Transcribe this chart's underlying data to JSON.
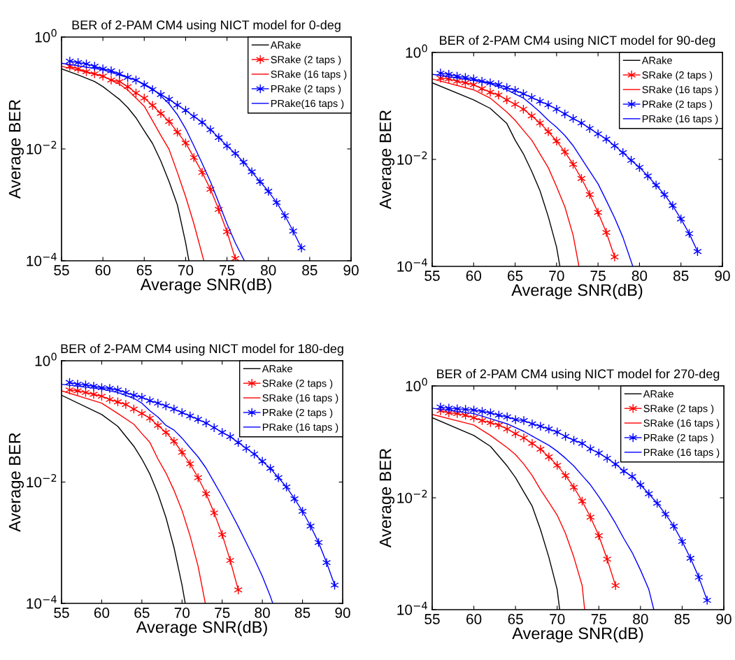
{
  "chart_data": [
    {
      "type": "line",
      "title": "BER of 2-PAM CM4 using NICT model for 0-deg",
      "xlabel": "Average SNR(dB)",
      "ylabel": "Average BER",
      "log": "y",
      "legend": "top right",
      "xlim": [
        55,
        90
      ],
      "xticks": [
        55,
        60,
        65,
        70,
        75,
        80,
        85,
        90
      ],
      "ylim": [
        0.0001,
        1
      ],
      "yticks": [
        {
          "value": 1,
          "label": "10$^{0}$"
        },
        {
          "value": 0.01,
          "label": "10$^{−2}$"
        },
        {
          "value": 0.0001,
          "label": "10$^{−4}$"
        }
      ],
      "series": [
        {
          "name": "ARake",
          "color": "#000000",
          "marker": "none",
          "x": [
            55,
            57,
            59,
            60,
            61,
            62,
            63,
            64,
            65,
            66,
            67,
            68,
            69,
            70,
            70.4
          ],
          "values": [
            0.27,
            0.21,
            0.16,
            0.13,
            0.1,
            0.077,
            0.055,
            0.036,
            0.021,
            0.0125,
            0.0061,
            0.0026,
            0.001,
            0.00021,
            0.0001
          ]
        },
        {
          "name": "SRake (2 taps )",
          "color": "#ff0000",
          "marker": "cross",
          "x": [
            56,
            57,
            58,
            59,
            60,
            61,
            62,
            63,
            64,
            65,
            66,
            67,
            68,
            69,
            70,
            71,
            72,
            73,
            74,
            75,
            76
          ],
          "values": [
            0.3,
            0.27,
            0.24,
            0.22,
            0.2,
            0.17,
            0.16,
            0.13,
            0.1,
            0.081,
            0.06,
            0.043,
            0.031,
            0.02,
            0.0128,
            0.007,
            0.0038,
            0.0019,
            0.00083,
            0.00033,
            0.00011
          ]
        },
        {
          "name": "SRake (16 taps )",
          "color": "#ff0000",
          "marker": "none",
          "x": [
            55,
            60,
            62,
            63,
            64,
            65,
            66,
            67,
            68,
            69,
            70,
            71,
            72.2
          ],
          "values": [
            0.3,
            0.2,
            0.144,
            0.113,
            0.081,
            0.058,
            0.032,
            0.0175,
            0.0098,
            0.0038,
            0.0014,
            0.00046,
            0.0001
          ]
        },
        {
          "name": "PRake (2 taps )",
          "color": "#0000ff",
          "marker": "cross",
          "x": [
            56,
            57,
            58,
            59,
            60,
            61,
            62,
            63,
            64,
            65,
            66,
            67,
            68,
            69,
            70,
            71,
            72,
            73,
            74,
            75,
            76,
            77,
            78,
            79,
            80,
            81,
            82,
            83,
            84
          ],
          "values": [
            0.37,
            0.35,
            0.33,
            0.3,
            0.27,
            0.25,
            0.22,
            0.19,
            0.17,
            0.14,
            0.115,
            0.094,
            0.077,
            0.061,
            0.049,
            0.038,
            0.03,
            0.022,
            0.016,
            0.0113,
            0.0083,
            0.0058,
            0.0039,
            0.0026,
            0.00175,
            0.0011,
            0.00064,
            0.00034,
            0.00017
          ]
        },
        {
          "name": "PRake(16 taps )",
          "color": "#0000ff",
          "marker": "none",
          "x": [
            55,
            60,
            62,
            64,
            65,
            66,
            67,
            68,
            69,
            70,
            71,
            72,
            73,
            74,
            75,
            76,
            77.1
          ],
          "values": [
            0.34,
            0.26,
            0.21,
            0.17,
            0.144,
            0.119,
            0.089,
            0.064,
            0.041,
            0.023,
            0.0114,
            0.0055,
            0.0026,
            0.0011,
            0.00046,
            0.00021,
            0.0001
          ]
        }
      ]
    },
    {
      "type": "line",
      "title": "BER of 2-PAM CM4 using NICT model for 90-deg",
      "xlabel": "Average SNR(dB)",
      "ylabel": "Average BER",
      "log": "y",
      "legend": "top right",
      "xlim": [
        55,
        90
      ],
      "xticks": [
        55,
        60,
        65,
        70,
        75,
        80,
        85,
        90
      ],
      "ylim": [
        0.0001,
        1
      ],
      "yticks": [
        {
          "value": 1,
          "label": "10$^{0}$"
        },
        {
          "value": 0.01,
          "label": "10$^{−2}$"
        },
        {
          "value": 0.0001,
          "label": "10$^{−4}$"
        }
      ],
      "series": [
        {
          "name": "ARake",
          "color": "#000000",
          "marker": "none",
          "x": [
            55,
            60,
            62,
            64,
            65,
            66,
            67,
            68,
            69,
            70,
            70.4
          ],
          "values": [
            0.27,
            0.13,
            0.09,
            0.047,
            0.023,
            0.0127,
            0.006,
            0.0026,
            0.00085,
            0.00023,
            0.0001
          ]
        },
        {
          "name": "SRake (2 taps )",
          "color": "#ff0000",
          "marker": "cross",
          "x": [
            56,
            57,
            58,
            59,
            60,
            61,
            62,
            63,
            64,
            65,
            66,
            67,
            68,
            69,
            70,
            71,
            72,
            73,
            74,
            75,
            76,
            77
          ],
          "values": [
            0.33,
            0.32,
            0.29,
            0.27,
            0.25,
            0.21,
            0.18,
            0.16,
            0.13,
            0.107,
            0.087,
            0.065,
            0.048,
            0.033,
            0.022,
            0.0138,
            0.0081,
            0.0044,
            0.0022,
            0.00102,
            0.00043,
            0.00015
          ]
        },
        {
          "name": "SRake (16 taps )",
          "color": "#ff0000",
          "marker": "none",
          "x": [
            55,
            60,
            62,
            64,
            65,
            66,
            67,
            68,
            69,
            70,
            71,
            72,
            72.7
          ],
          "values": [
            0.32,
            0.2,
            0.14,
            0.077,
            0.054,
            0.035,
            0.023,
            0.0127,
            0.007,
            0.0031,
            0.0013,
            0.00038,
            0.0001
          ]
        },
        {
          "name": "PRake (2 taps )",
          "color": "#0000ff",
          "marker": "cross",
          "x": [
            56,
            57,
            58,
            59,
            60,
            61,
            62,
            63,
            64,
            65,
            66,
            67,
            68,
            69,
            70,
            71,
            72,
            73,
            74,
            75,
            76,
            77,
            78,
            79,
            80,
            81,
            82,
            83,
            84,
            85,
            86,
            87
          ],
          "values": [
            0.41,
            0.39,
            0.36,
            0.34,
            0.32,
            0.29,
            0.27,
            0.25,
            0.22,
            0.195,
            0.169,
            0.144,
            0.122,
            0.105,
            0.087,
            0.071,
            0.058,
            0.048,
            0.038,
            0.03,
            0.024,
            0.018,
            0.0134,
            0.0096,
            0.0071,
            0.0049,
            0.0033,
            0.0022,
            0.00137,
            0.00077,
            0.00041,
            0.00019
          ]
        },
        {
          "name": "PRake (16 taps )",
          "color": "#0000ff",
          "marker": "none",
          "x": [
            55,
            60,
            62,
            64,
            66,
            67,
            68,
            69,
            70,
            71,
            72,
            73,
            74,
            75,
            76,
            77,
            78,
            79.2
          ],
          "values": [
            0.39,
            0.3,
            0.26,
            0.2,
            0.14,
            0.105,
            0.077,
            0.054,
            0.04,
            0.028,
            0.018,
            0.0104,
            0.006,
            0.0035,
            0.0017,
            0.00081,
            0.00035,
            0.0001
          ]
        }
      ]
    },
    {
      "type": "line",
      "title": "BER of 2-PAM CM4 using NICT model for 180-deg",
      "xlabel": "Average SNR(dB)",
      "ylabel": "Average BER",
      "log": "y",
      "legend": "top right",
      "xlim": [
        55,
        90
      ],
      "xticks": [
        55,
        60,
        65,
        70,
        75,
        80,
        85,
        90
      ],
      "ylim": [
        0.0001,
        1
      ],
      "yticks": [
        {
          "value": 1,
          "label": "10$^{0}$"
        },
        {
          "value": 0.01,
          "label": "10$^{−2}$"
        },
        {
          "value": 0.0001,
          "label": "10$^{−4}$"
        }
      ],
      "series": [
        {
          "name": "ARake",
          "color": "#000000",
          "marker": "none",
          "x": [
            55,
            60,
            62,
            64,
            65,
            66,
            67,
            68,
            69,
            70,
            70.4
          ],
          "values": [
            0.27,
            0.13,
            0.083,
            0.039,
            0.024,
            0.0135,
            0.0064,
            0.0026,
            0.00083,
            0.0002,
            0.0001
          ]
        },
        {
          "name": "SRake (2 taps )",
          "color": "#ff0000",
          "marker": "cross",
          "x": [
            56,
            57,
            58,
            59,
            60,
            61,
            62,
            63,
            64,
            65,
            66,
            67,
            68,
            69,
            70,
            71,
            72,
            73,
            74,
            75,
            76,
            77
          ],
          "values": [
            0.33,
            0.32,
            0.3,
            0.28,
            0.26,
            0.23,
            0.21,
            0.19,
            0.16,
            0.135,
            0.113,
            0.086,
            0.066,
            0.047,
            0.031,
            0.02,
            0.0118,
            0.0064,
            0.0031,
            0.00136,
            0.00051,
            0.000167
          ]
        },
        {
          "name": "SRake (16 taps )",
          "color": "#ff0000",
          "marker": "none",
          "x": [
            55,
            60,
            62,
            64,
            65,
            66,
            67,
            68,
            69,
            70,
            71,
            72,
            72.9
          ],
          "values": [
            0.32,
            0.2,
            0.135,
            0.09,
            0.063,
            0.045,
            0.024,
            0.0141,
            0.0073,
            0.0034,
            0.0013,
            0.00041,
            0.0001
          ]
        },
        {
          "name": "PRake (2 taps )",
          "color": "#0000ff",
          "marker": "cross",
          "x": [
            56,
            57,
            58,
            59,
            60,
            61,
            62,
            63,
            64,
            65,
            66,
            67,
            68,
            69,
            70,
            71,
            72,
            73,
            74,
            75,
            76,
            77,
            78,
            79,
            80,
            81,
            82,
            83,
            84,
            85,
            86,
            87,
            88,
            89
          ],
          "values": [
            0.44,
            0.41,
            0.4,
            0.38,
            0.36,
            0.35,
            0.33,
            0.3,
            0.27,
            0.25,
            0.22,
            0.2,
            0.18,
            0.16,
            0.14,
            0.123,
            0.108,
            0.094,
            0.079,
            0.066,
            0.056,
            0.045,
            0.036,
            0.029,
            0.022,
            0.0168,
            0.0118,
            0.0083,
            0.0053,
            0.0033,
            0.00188,
            0.00101,
            0.00047,
            0.0002
          ]
        },
        {
          "name": "PRake (16 taps )",
          "color": "#0000ff",
          "marker": "none",
          "x": [
            55,
            60,
            62,
            64,
            65,
            66,
            67,
            68,
            69,
            70,
            71,
            72,
            73,
            74,
            75,
            76,
            77,
            78,
            79,
            80,
            81,
            81.3
          ],
          "values": [
            0.41,
            0.34,
            0.3,
            0.24,
            0.2,
            0.15,
            0.118,
            0.086,
            0.072,
            0.053,
            0.037,
            0.026,
            0.0169,
            0.0099,
            0.0058,
            0.0033,
            0.00185,
            0.001,
            0.00054,
            0.00028,
            0.00013,
            0.0001
          ]
        }
      ]
    },
    {
      "type": "line",
      "title": "BER of 2-PAM CM4 using NICT model for 270-deg",
      "xlabel": "Average SNR(dB)",
      "ylabel": "Average BER",
      "log": "y",
      "legend": "top right",
      "xlim": [
        55,
        90
      ],
      "xticks": [
        55,
        60,
        65,
        70,
        75,
        80,
        85,
        90
      ],
      "ylim": [
        0.0001,
        1
      ],
      "yticks": [
        {
          "value": 1,
          "label": "10$^{0}$"
        },
        {
          "value": 0.01,
          "label": "10$^{−2}$"
        },
        {
          "value": 0.0001,
          "label": "10$^{−4}$"
        }
      ],
      "series": [
        {
          "name": "ARake",
          "color": "#000000",
          "marker": "none",
          "x": [
            55,
            60,
            62,
            64,
            65,
            66,
            67,
            68,
            69,
            70,
            70.3
          ],
          "values": [
            0.27,
            0.13,
            0.083,
            0.037,
            0.023,
            0.0127,
            0.0071,
            0.0027,
            0.00087,
            0.00023,
            0.0001
          ]
        },
        {
          "name": "SRake (2 taps )",
          "color": "#ff0000",
          "marker": "cross",
          "x": [
            56,
            57,
            58,
            59,
            60,
            61,
            62,
            63,
            64,
            65,
            66,
            67,
            68,
            69,
            70,
            71,
            72,
            73,
            74,
            75,
            76,
            77
          ],
          "values": [
            0.36,
            0.33,
            0.32,
            0.3,
            0.27,
            0.24,
            0.22,
            0.2,
            0.17,
            0.14,
            0.118,
            0.094,
            0.074,
            0.054,
            0.038,
            0.025,
            0.0154,
            0.0087,
            0.0045,
            0.0021,
            0.0008,
            0.00027
          ]
        },
        {
          "name": "SRake (16 taps )",
          "color": "#ff0000",
          "marker": "none",
          "x": [
            55,
            60,
            62,
            64,
            65,
            66,
            67,
            68,
            69,
            70,
            71,
            72,
            73,
            73.3
          ],
          "values": [
            0.31,
            0.2,
            0.13,
            0.079,
            0.059,
            0.04,
            0.025,
            0.014,
            0.0083,
            0.0049,
            0.0023,
            0.00087,
            0.00027,
            0.0001
          ]
        },
        {
          "name": "PRake (2 taps )",
          "color": "#0000ff",
          "marker": "cross",
          "x": [
            56,
            57,
            58,
            59,
            60,
            61,
            62,
            63,
            64,
            65,
            66,
            67,
            68,
            69,
            70,
            71,
            72,
            73,
            74,
            75,
            76,
            77,
            78,
            79,
            80,
            81,
            82,
            83,
            84,
            85,
            86,
            87,
            88
          ],
          "values": [
            0.42,
            0.4,
            0.39,
            0.38,
            0.37,
            0.35,
            0.33,
            0.3,
            0.28,
            0.25,
            0.24,
            0.21,
            0.19,
            0.17,
            0.15,
            0.125,
            0.107,
            0.094,
            0.075,
            0.063,
            0.051,
            0.04,
            0.03,
            0.024,
            0.017,
            0.0118,
            0.008,
            0.0051,
            0.0031,
            0.00166,
            0.00083,
            0.00038,
            0.000147
          ]
        },
        {
          "name": "PRake (16 taps )",
          "color": "#0000ff",
          "marker": "none",
          "x": [
            55,
            60,
            62,
            64,
            66,
            68,
            69,
            70,
            71,
            72,
            73,
            74,
            75,
            76,
            77,
            78,
            79,
            80,
            81,
            81.6
          ],
          "values": [
            0.4,
            0.32,
            0.26,
            0.21,
            0.154,
            0.105,
            0.087,
            0.068,
            0.051,
            0.037,
            0.025,
            0.017,
            0.0105,
            0.0062,
            0.0035,
            0.00187,
            0.00105,
            0.00051,
            0.00023,
            0.0001
          ]
        }
      ]
    }
  ]
}
